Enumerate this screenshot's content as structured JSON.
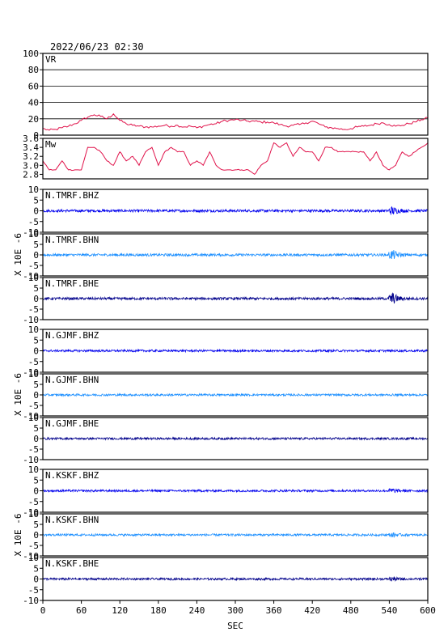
{
  "timestamp": "2022/06/23 02:30",
  "chart_data": [
    {
      "type": "line",
      "label": "VR",
      "ylim": [
        0,
        100
      ],
      "yticks": [
        0,
        20,
        40,
        60,
        80,
        100
      ],
      "grid": true,
      "color": "#e0124a",
      "x": [
        0,
        10,
        20,
        30,
        40,
        50,
        60,
        70,
        80,
        90,
        100,
        110,
        120,
        130,
        140,
        150,
        160,
        170,
        180,
        190,
        200,
        210,
        220,
        230,
        240,
        250,
        260,
        270,
        280,
        290,
        300,
        310,
        320,
        330,
        340,
        350,
        360,
        370,
        380,
        390,
        400,
        410,
        420,
        430,
        440,
        450,
        460,
        470,
        480,
        490,
        500,
        510,
        520,
        530,
        540,
        550,
        560,
        570,
        580,
        590,
        600
      ],
      "y": [
        8,
        6,
        7,
        9,
        11,
        14,
        18,
        22,
        25,
        23,
        20,
        26,
        18,
        14,
        12,
        11,
        10,
        10,
        11,
        12,
        11,
        12,
        10,
        11,
        9,
        11,
        13,
        14,
        17,
        18,
        19,
        18,
        17,
        17,
        16,
        16,
        15,
        13,
        11,
        12,
        13,
        15,
        17,
        14,
        10,
        9,
        8,
        7,
        8,
        10,
        11,
        12,
        14,
        15,
        13,
        11,
        12,
        14,
        16,
        19,
        21
      ]
    },
    {
      "type": "line",
      "label": "Mw",
      "ylim": [
        2.7,
        3.6
      ],
      "yticks": [
        2.8,
        3.0,
        3.2,
        3.4,
        3.6
      ],
      "grid": false,
      "color": "#e0124a",
      "x": [
        0,
        10,
        20,
        30,
        40,
        50,
        60,
        70,
        80,
        90,
        100,
        110,
        120,
        130,
        140,
        150,
        160,
        170,
        180,
        190,
        200,
        210,
        220,
        230,
        240,
        250,
        260,
        270,
        280,
        290,
        300,
        310,
        320,
        330,
        340,
        350,
        360,
        370,
        380,
        390,
        400,
        410,
        420,
        430,
        440,
        450,
        460,
        470,
        480,
        490,
        500,
        510,
        520,
        530,
        540,
        550,
        560,
        570,
        580,
        590,
        600
      ],
      "y": [
        3.1,
        2.9,
        2.9,
        3.1,
        2.9,
        2.9,
        2.9,
        3.4,
        3.4,
        3.3,
        3.1,
        3.0,
        3.3,
        3.1,
        3.2,
        3.0,
        3.3,
        3.4,
        3.0,
        3.3,
        3.4,
        3.3,
        3.3,
        3.0,
        3.1,
        3.0,
        3.3,
        3.0,
        2.9,
        2.9,
        2.9,
        2.9,
        2.9,
        2.8,
        3.0,
        3.1,
        3.5,
        3.4,
        3.5,
        3.2,
        3.4,
        3.3,
        3.3,
        3.1,
        3.4,
        3.4,
        3.3,
        3.3,
        3.3,
        3.3,
        3.3,
        3.1,
        3.3,
        3.0,
        2.9,
        3.0,
        3.3,
        3.2,
        3.3,
        3.4,
        3.5
      ]
    },
    {
      "type": "line",
      "label": "N.TMRF.BHZ",
      "ylim": [
        -10,
        10
      ],
      "yticks": [
        -10,
        -5,
        0,
        5,
        10
      ],
      "color": "#0000ee",
      "amplitude": 0.6,
      "event": {
        "x": 545,
        "amplitude": 1.8
      }
    },
    {
      "type": "line",
      "label": "N.TMRF.BHN",
      "ylim": [
        -10,
        10
      ],
      "yticks": [
        -10,
        -5,
        0,
        5,
        10
      ],
      "color": "#1e90ff",
      "amplitude": 0.6,
      "event": {
        "x": 545,
        "amplitude": 2.2
      }
    },
    {
      "type": "line",
      "label": "N.TMRF.BHE",
      "ylim": [
        -10,
        10
      ],
      "yticks": [
        -10,
        -5,
        0,
        5,
        10
      ],
      "color": "#00008b",
      "amplitude": 0.6,
      "event": {
        "x": 545,
        "amplitude": 2.6
      }
    },
    {
      "type": "line",
      "label": "N.GJMF.BHZ",
      "ylim": [
        -10,
        10
      ],
      "yticks": [
        -10,
        -5,
        0,
        5,
        10
      ],
      "color": "#0000ee",
      "amplitude": 0.5
    },
    {
      "type": "line",
      "label": "N.GJMF.BHN",
      "ylim": [
        -10,
        10
      ],
      "yticks": [
        -10,
        -5,
        0,
        5,
        10
      ],
      "color": "#1e90ff",
      "amplitude": 0.5
    },
    {
      "type": "line",
      "label": "N.GJMF.BHE",
      "ylim": [
        -10,
        10
      ],
      "yticks": [
        -10,
        -5,
        0,
        5,
        10
      ],
      "color": "#00008b",
      "amplitude": 0.5
    },
    {
      "type": "line",
      "label": "N.KSKF.BHZ",
      "ylim": [
        -10,
        10
      ],
      "yticks": [
        -10,
        -5,
        0,
        5,
        10
      ],
      "color": "#0000ee",
      "amplitude": 0.5,
      "event": {
        "x": 545,
        "amplitude": 0.9
      }
    },
    {
      "type": "line",
      "label": "N.KSKF.BHN",
      "ylim": [
        -10,
        10
      ],
      "yticks": [
        -10,
        -5,
        0,
        5,
        10
      ],
      "color": "#1e90ff",
      "amplitude": 0.5,
      "event": {
        "x": 545,
        "amplitude": 0.8
      }
    },
    {
      "type": "line",
      "label": "N.KSKF.BHE",
      "ylim": [
        -10,
        10
      ],
      "yticks": [
        -10,
        -5,
        0,
        5,
        10
      ],
      "color": "#00008b",
      "amplitude": 0.5,
      "event": {
        "x": 545,
        "amplitude": 0.8
      }
    }
  ],
  "ylabel": "X 10E -6",
  "xlabel": "SEC",
  "xlim": [
    0,
    600
  ],
  "xticks": [
    0,
    60,
    120,
    180,
    240,
    300,
    360,
    420,
    480,
    540,
    600
  ]
}
